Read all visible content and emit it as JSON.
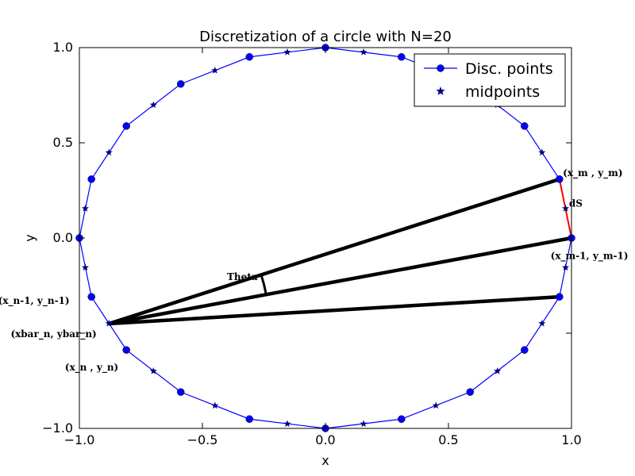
{
  "chart_data": {
    "type": "line",
    "title": "Discretization of a circle with N=20",
    "xlabel": "x",
    "ylabel": "y",
    "xlim": [
      -1.0,
      1.0
    ],
    "ylim": [
      -1.0,
      1.0
    ],
    "xticks": [
      -1.0,
      -0.5,
      0.0,
      0.5,
      1.0
    ],
    "yticks": [
      -1.0,
      -0.5,
      0.0,
      0.5,
      1.0
    ],
    "xtick_labels": [
      "−1.0",
      "−0.5",
      "0.0",
      "0.5",
      "1.0"
    ],
    "ytick_labels": [
      "−1.0",
      "",
      "0.0",
      "0.5",
      "1.0"
    ],
    "grid": false,
    "legend_position": "top-right",
    "series": [
      {
        "name": "Disc. points",
        "marker": "circle",
        "color": "#0000ff",
        "points": [
          [
            1.0,
            0.0
          ],
          [
            0.951,
            0.309
          ],
          [
            0.809,
            0.588
          ],
          [
            0.588,
            0.809
          ],
          [
            0.309,
            0.951
          ],
          [
            0.0,
            1.0
          ],
          [
            -0.309,
            0.951
          ],
          [
            -0.588,
            0.809
          ],
          [
            -0.809,
            0.588
          ],
          [
            -0.951,
            0.309
          ],
          [
            -1.0,
            0.0
          ],
          [
            -0.951,
            -0.309
          ],
          [
            -0.809,
            -0.588
          ],
          [
            -0.588,
            -0.809
          ],
          [
            -0.309,
            -0.951
          ],
          [
            0.0,
            -1.0
          ],
          [
            0.309,
            -0.951
          ],
          [
            0.588,
            -0.809
          ],
          [
            0.809,
            -0.588
          ],
          [
            0.951,
            -0.309
          ],
          [
            1.0,
            0.0
          ]
        ]
      },
      {
        "name": "midpoints",
        "marker": "star",
        "color": "#000080",
        "points": [
          [
            0.976,
            0.155
          ],
          [
            0.88,
            0.449
          ],
          [
            0.699,
            0.699
          ],
          [
            0.449,
            0.88
          ],
          [
            0.155,
            0.976
          ],
          [
            -0.155,
            0.976
          ],
          [
            -0.449,
            0.88
          ],
          [
            -0.699,
            0.699
          ],
          [
            -0.88,
            0.449
          ],
          [
            -0.976,
            0.155
          ],
          [
            -0.976,
            -0.155
          ],
          [
            -0.88,
            -0.449
          ],
          [
            -0.699,
            -0.699
          ],
          [
            -0.449,
            -0.88
          ],
          [
            -0.155,
            -0.976
          ],
          [
            0.155,
            -0.976
          ],
          [
            0.449,
            -0.88
          ],
          [
            0.699,
            -0.699
          ],
          [
            0.88,
            -0.449
          ],
          [
            0.976,
            -0.155
          ]
        ]
      }
    ],
    "construction": {
      "apex": [
        -0.88,
        -0.45
      ],
      "black_line_targets": [
        [
          0.951,
          0.309
        ],
        [
          1.0,
          0.0
        ],
        [
          0.951,
          -0.309
        ]
      ],
      "ds_segment": [
        [
          0.951,
          0.309
        ],
        [
          1.0,
          0.0
        ]
      ],
      "ds_color": "#ff0000",
      "theta_arc_radius": 0.65
    },
    "annotations": [
      {
        "text": "(x_m , y_m)",
        "x": 0.965,
        "y": 0.325,
        "align": "start"
      },
      {
        "text": "dS",
        "x": 0.99,
        "y": 0.165,
        "align": "start",
        "color": "#ff0000"
      },
      {
        "text": "(x_m-1, y_m-1)",
        "x": 0.915,
        "y": -0.11,
        "align": "start"
      },
      {
        "text": "Theta",
        "x": -0.4,
        "y": -0.22,
        "align": "start"
      },
      {
        "text": "(x_n-1, y_n-1)",
        "x": -1.04,
        "y": -0.345,
        "align": "end"
      },
      {
        "text": "(xbar_n, ybar_n)",
        "x": -1.04,
        "y": -0.52,
        "align": "middle-shift"
      },
      {
        "text": "(x_n , y_n)",
        "x": -0.95,
        "y": -0.695,
        "align": "middle"
      }
    ]
  }
}
